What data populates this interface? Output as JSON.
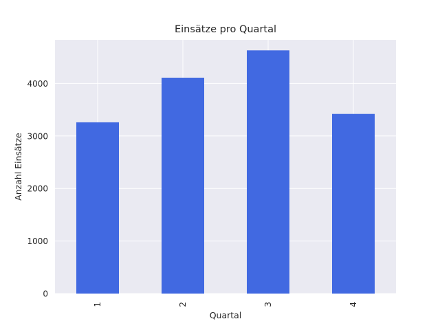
{
  "colors": {
    "bar": "#4169e1",
    "plot_background": "#eaeaf2",
    "grid": "#ffffff",
    "text": "#262626"
  },
  "chart_data": {
    "type": "bar",
    "title": "Einsätze pro Quartal",
    "xlabel": "Quartal",
    "ylabel": "Anzahl Einsätze",
    "categories": [
      "1",
      "2",
      "3",
      "4"
    ],
    "values": [
      3260,
      4110,
      4630,
      3420
    ],
    "ylim": [
      0,
      4830
    ],
    "yticks": [
      0,
      1000,
      2000,
      3000,
      4000
    ],
    "grid": true,
    "legend": "none"
  }
}
